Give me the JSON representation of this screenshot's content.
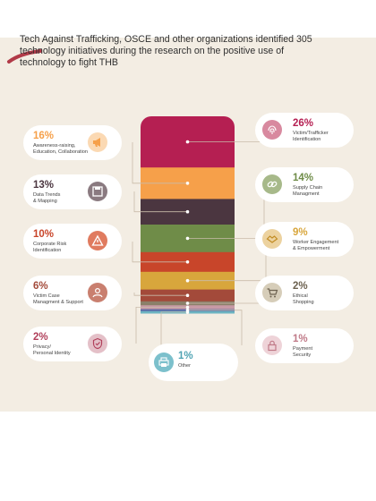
{
  "title": "Tech Against Trafficking, OSCE and other organizations identified 305 technology initiatives during the research on the positive use of technology to fight THB",
  "colors": {
    "background": "#f3ede3",
    "accent": "#b13a48",
    "band_victim_id": "#b51f52",
    "band_awareness": "#f6a04a",
    "band_data": "#4b3640",
    "band_supply": "#6f8c48",
    "band_corporate": "#c8452a",
    "band_worker": "#d8a63c",
    "band_victim_case": "#a34a3a",
    "band_ethical": "#8b7f69",
    "band_privacy": "#c79aa5",
    "band_payment": "#5c6ba6",
    "band_other": "#6cb4c2"
  },
  "chart_data": {
    "type": "stacked-bar",
    "total_initiatives": 305,
    "segments": [
      {
        "label": "Victim/Trafficker Identification",
        "value": 26,
        "color": "#b51f52",
        "icon": "fingerprint-icon"
      },
      {
        "label": "Awareness-raising, Education, Collaboration",
        "value": 16,
        "color": "#f6a04a",
        "icon": "megaphone-icon"
      },
      {
        "label": "Data Trends & Mapping",
        "value": 13,
        "color": "#4b3640",
        "icon": "floppy-disk-icon"
      },
      {
        "label": "Supply Chain Managment",
        "value": 14,
        "color": "#6f8c48",
        "icon": "chain-link-icon"
      },
      {
        "label": "Corporate Risk Identification",
        "value": 10,
        "color": "#c8452a",
        "icon": "warning-icon"
      },
      {
        "label": "Worker Engagement & Empowerment",
        "value": 9,
        "color": "#d8a63c",
        "icon": "handshake-icon"
      },
      {
        "label": "Victim Case Managment & Support",
        "value": 6,
        "color": "#a34a3a",
        "icon": "support-icon"
      },
      {
        "label": "Ethical Shopping",
        "value": 2,
        "color": "#8b7f69",
        "icon": "shopping-cart-icon"
      },
      {
        "label": "Privacy/ Personal Identity",
        "value": 2,
        "color": "#c79aa5",
        "icon": "shield-icon"
      },
      {
        "label": "Payment Security",
        "value": 1,
        "color": "#5c6ba6",
        "icon": "padlock-icon"
      },
      {
        "label": "Other",
        "value": 1,
        "color": "#6cb4c2",
        "icon": "printer-icon"
      }
    ]
  },
  "cards": {
    "awareness": {
      "pct": "16%",
      "line1": "Awareness-raising,",
      "line2": "Education, Collaboration",
      "color": "#f6a04a",
      "icon_bg": "#fbd9b3"
    },
    "data": {
      "pct": "13%",
      "line1": "Data Trends",
      "line2": "& Mapping",
      "color": "#4b3640",
      "icon_bg": "#8a7a80"
    },
    "corporate": {
      "pct": "10%",
      "line1": "Corporate Risk",
      "line2": "Identification",
      "color": "#c8452a",
      "icon_bg": "#e07b5f"
    },
    "victim_case": {
      "pct": "6%",
      "line1": "Victim Case",
      "line2": "Managment & Support",
      "color": "#a34a3a",
      "icon_bg": "#c97f6f"
    },
    "privacy": {
      "pct": "2%",
      "line1": "Privacy/",
      "line2": "Personal Identity",
      "color": "#b1405b",
      "icon_bg": "#e4c0c8"
    },
    "victim_id": {
      "pct": "26%",
      "line1": "Victim/Trafficker",
      "line2": "Identification",
      "color": "#b51f52",
      "icon_bg": "#d8899f"
    },
    "supply": {
      "pct": "14%",
      "line1": "Supply Chain",
      "line2": "Managment",
      "color": "#6f8c48",
      "icon_bg": "#a7b98a"
    },
    "worker": {
      "pct": "9%",
      "line1": "Worker Engagement",
      "line2": "& Empowerment",
      "color": "#d8a63c",
      "icon_bg": "#ecd29f"
    },
    "ethical": {
      "pct": "2%",
      "line1": "Ethical",
      "line2": "Shopping",
      "color": "#6d6250",
      "icon_bg": "#d6cdb9"
    },
    "payment": {
      "pct": "1%",
      "line1": "Payment",
      "line2": "Security",
      "color": "#c07a88",
      "icon_bg": "#eed3d8"
    },
    "other": {
      "pct": "1%",
      "line1": "Other",
      "line2": "",
      "color": "#4fa3b3",
      "icon_bg": "#7cc0cc"
    }
  }
}
